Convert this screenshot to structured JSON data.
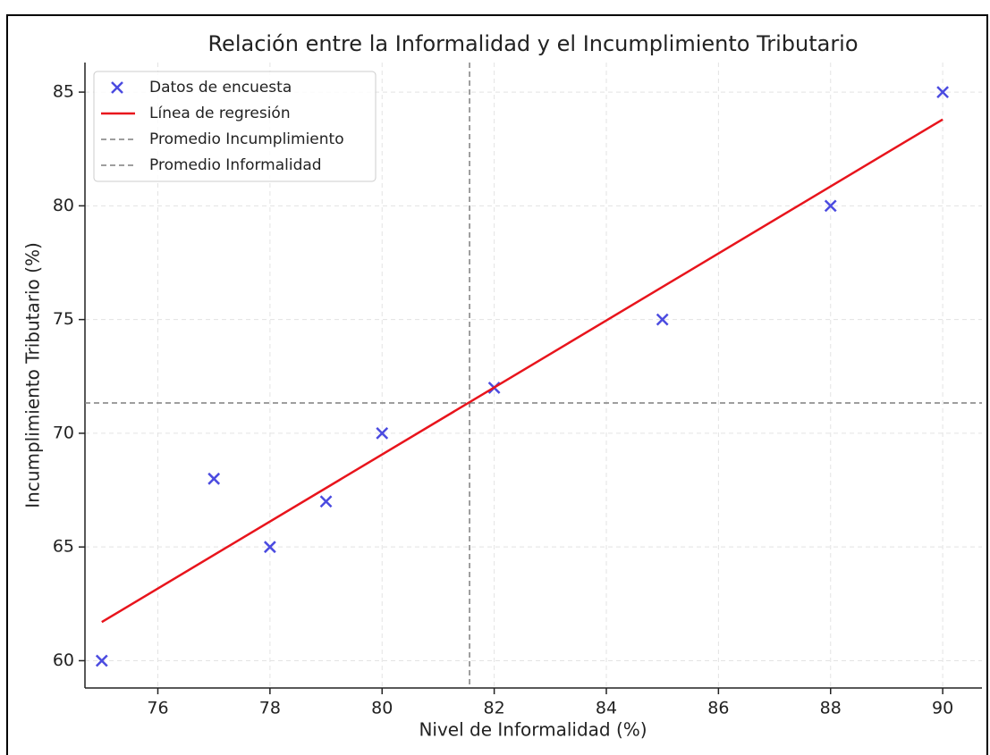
{
  "chart_data": {
    "type": "scatter",
    "title": "Relación entre la Informalidad y el Incumplimiento Tributario",
    "x_label": "Nivel de Informalidad (%)",
    "y_label": "Incumplimiento Tributario (%)",
    "series": [
      {
        "name": "Datos de encuesta",
        "kind": "scatter",
        "color": "#4b4be0",
        "x": [
          75,
          77,
          78,
          79,
          80,
          82,
          85,
          88,
          90
        ],
        "values": [
          60,
          68,
          65,
          67,
          70,
          72,
          75,
          80,
          85
        ]
      },
      {
        "name": "Línea de regresión",
        "kind": "line",
        "color": "#e8141c",
        "x": [
          75,
          90
        ],
        "values": [
          61.7,
          83.8
        ]
      }
    ],
    "reference_lines": [
      {
        "name": "Promedio Incumplimiento",
        "axis": "y",
        "value": 71.33,
        "color": "#7f7f7f"
      },
      {
        "name": "Promedio Informalidad",
        "axis": "x",
        "value": 81.56,
        "color": "#7f7f7f"
      }
    ],
    "xlim": [
      74.7,
      90.7
    ],
    "xticks": [
      76,
      78,
      80,
      82,
      84,
      86,
      88,
      90
    ],
    "ylim": [
      58.8,
      86.3
    ],
    "yticks": [
      60,
      65,
      70,
      75,
      80,
      85
    ],
    "grid": true,
    "legend": "upper left"
  }
}
